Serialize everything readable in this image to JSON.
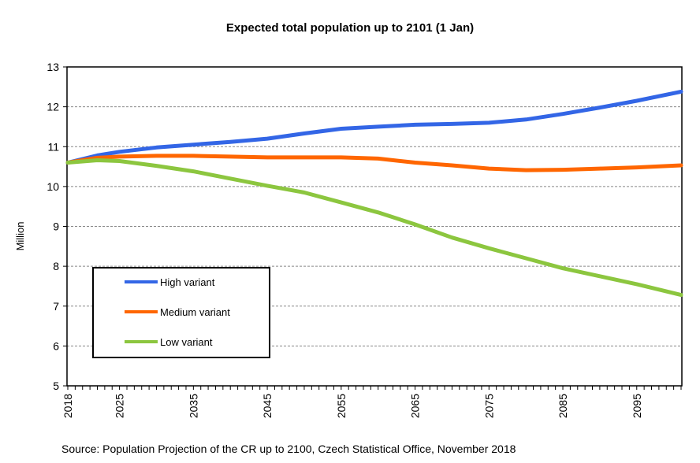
{
  "chart_data": {
    "type": "line",
    "title": "Expected total population up to 2101 (1 Jan)",
    "xlabel": "",
    "ylabel": "Million",
    "ylim": [
      5,
      13
    ],
    "xlim": [
      2018,
      2101
    ],
    "yticks": [
      5,
      6,
      7,
      8,
      9,
      10,
      11,
      12,
      13
    ],
    "xticks": [
      2018,
      2025,
      2035,
      2045,
      2055,
      2065,
      2075,
      2085,
      2095
    ],
    "grid": true,
    "legend_position": "bottom-left",
    "series": [
      {
        "name": "High variant",
        "color": "#3366e6",
        "x": [
          2018,
          2022,
          2025,
          2030,
          2035,
          2040,
          2045,
          2050,
          2055,
          2060,
          2065,
          2070,
          2075,
          2080,
          2085,
          2090,
          2095,
          2101
        ],
        "values": [
          10.6,
          10.78,
          10.87,
          10.98,
          11.05,
          11.12,
          11.2,
          11.33,
          11.45,
          11.5,
          11.55,
          11.57,
          11.6,
          11.68,
          11.82,
          11.98,
          12.15,
          12.38
        ]
      },
      {
        "name": "Medium variant",
        "color": "#ff6600",
        "x": [
          2018,
          2022,
          2025,
          2030,
          2035,
          2040,
          2045,
          2050,
          2055,
          2060,
          2065,
          2070,
          2075,
          2080,
          2085,
          2090,
          2095,
          2101
        ],
        "values": [
          10.6,
          10.72,
          10.75,
          10.77,
          10.77,
          10.75,
          10.73,
          10.73,
          10.73,
          10.7,
          10.6,
          10.53,
          10.45,
          10.41,
          10.42,
          10.45,
          10.48,
          10.53
        ]
      },
      {
        "name": "Low variant",
        "color": "#8cc63f",
        "x": [
          2018,
          2022,
          2025,
          2030,
          2035,
          2040,
          2045,
          2050,
          2055,
          2060,
          2065,
          2070,
          2075,
          2080,
          2085,
          2090,
          2095,
          2101
        ],
        "values": [
          10.6,
          10.66,
          10.64,
          10.52,
          10.38,
          10.2,
          10.02,
          9.85,
          9.6,
          9.35,
          9.05,
          8.72,
          8.45,
          8.2,
          7.95,
          7.75,
          7.55,
          7.28
        ]
      }
    ],
    "source": "Source:  Population Projection of the CR up to 2100, Czech Statistical Office, November  2018"
  }
}
